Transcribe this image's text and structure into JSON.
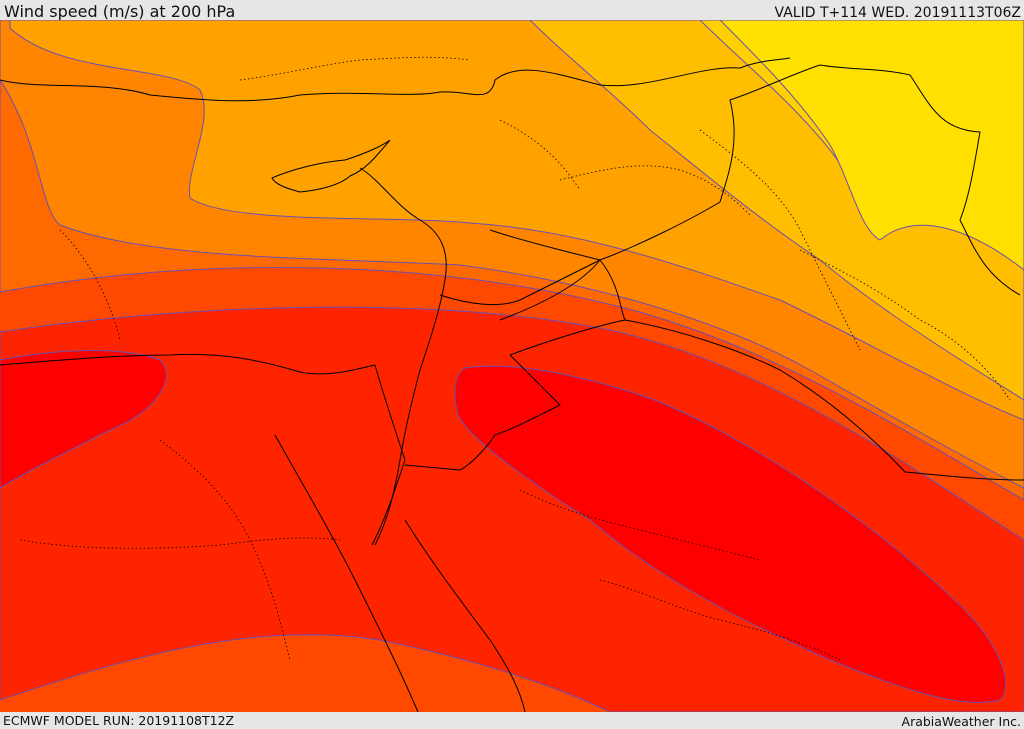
{
  "header": {
    "title": "Wind speed (m/s) at 200 hPa",
    "valid": "VALID T+114 WED. 20191113T06Z"
  },
  "footer": {
    "model_run": "ECMWF MODEL RUN: 20191108T12Z",
    "credit": "ArabiaWeather Inc."
  },
  "colors": {
    "band_1": "#ffe000",
    "band_2": "#ffbf00",
    "band_3": "#ffa200",
    "band_4": "#ff8500",
    "band_5": "#ff6a00",
    "band_6": "#ff4800",
    "band_7": "#ff2400",
    "band_8": "#ff0000",
    "contour": "#6b4fb0",
    "border": "#000000"
  }
}
